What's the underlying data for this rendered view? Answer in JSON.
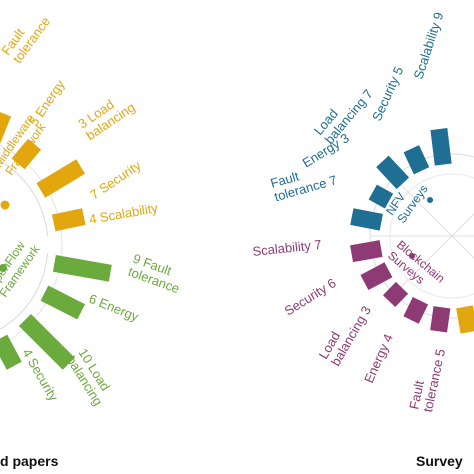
{
  "chart_data": {
    "type": "bar",
    "subtype": "circular-bar",
    "groups": [
      {
        "name": "Middleware\nFramework",
        "color": "#E2A70F",
        "categories": [
          "Fault tolerance",
          "Energy",
          "Load balancing",
          "Security",
          "Scalability"
        ],
        "values": [
          null,
          5,
          3,
          7,
          4
        ]
      },
      {
        "name": "OpenFlow\nFramework",
        "color": "#6BAA3C",
        "categories": [
          "Fault tolerance",
          "Energy",
          "Load balancing",
          "Security"
        ],
        "values": [
          9,
          6,
          10,
          4
        ]
      },
      {
        "name": "NFV\nSurveys",
        "color": "#1F6E93",
        "categories": [
          "Scalability",
          "Security",
          "Load balancing",
          "Energy",
          "Fault tolerance"
        ],
        "values": [
          9,
          5,
          7,
          3,
          7
        ]
      },
      {
        "name": "Blockchain\nSurveys",
        "color": "#8E3A74",
        "categories": [
          "Scalability",
          "Security",
          "Load balancing",
          "Energy",
          "Fault tolerance"
        ],
        "values": [
          7,
          6,
          3,
          4,
          5
        ]
      }
    ],
    "labels": {
      "mid_fault": "Fault\ntolerance",
      "mid_energy": "5 Energy",
      "mid_load": "3 Load\nbalancing",
      "mid_security": "7 Security",
      "mid_scal": "4 Scalability",
      "of_fault": "9 Fault\ntolerance",
      "of_energy": "6 Energy",
      "of_load": "10 Load\nbalancing",
      "of_security": "4 Security",
      "nfv_scal": "Scalability 9",
      "nfv_sec": "Security 5",
      "nfv_load": "Load\nbalancing 7",
      "nfv_energy": "Energy 3",
      "nfv_fault": "Fault\ntolerance 7",
      "bc_scal": "Scalability 7",
      "bc_sec": "Security 6",
      "bc_load": "Load\nbalancing 3",
      "bc_energy": "Energy 4",
      "bc_fault": "Fault\ntolerance 5"
    },
    "captions": {
      "left": "d papers",
      "right": "Survey"
    }
  }
}
